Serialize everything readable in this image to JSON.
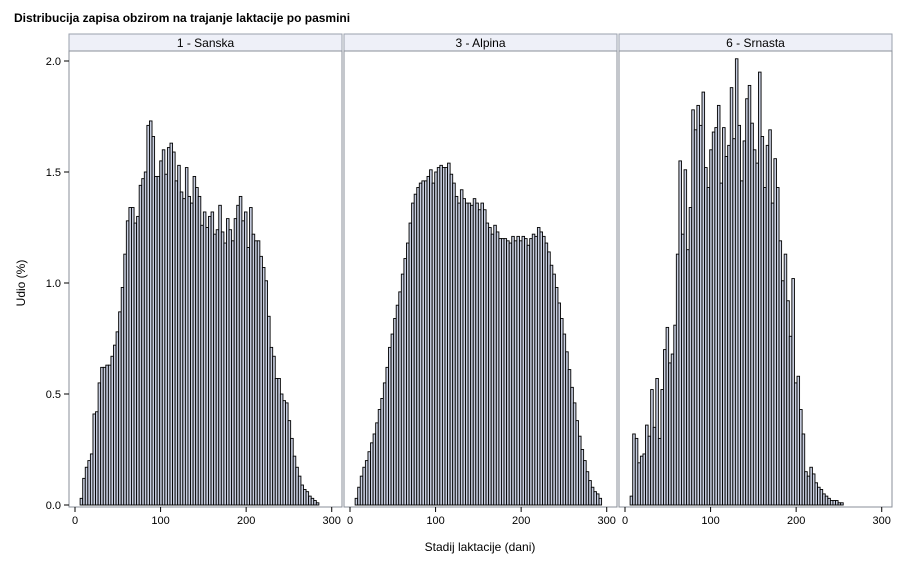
{
  "chart_data": {
    "type": "bar",
    "title": "Distribucija zapisa obzirom na trajanje laktacije po pasmini",
    "xlabel": "Stadij laktacije (dani)",
    "ylabel": "Udio (%)",
    "xlim": [
      0,
      305
    ],
    "ylim": [
      0,
      2.0
    ],
    "xticks": [
      0,
      100,
      200,
      300
    ],
    "yticks": [
      "0.0",
      "0.5",
      "1.0",
      "1.5",
      "2.0"
    ],
    "bin_width": 3,
    "bar_color": "#c9cfe1",
    "bar_edge_color": "#000000",
    "panel_header_color": "#eef0f8",
    "panels": [
      {
        "name": "1 - Sanska",
        "start": 6,
        "values": [
          0.03,
          0.12,
          0.17,
          0.2,
          0.23,
          0.41,
          0.42,
          0.55,
          0.62,
          0.62,
          0.63,
          0.63,
          0.67,
          0.72,
          0.78,
          0.87,
          0.98,
          1.13,
          1.28,
          1.34,
          1.34,
          1.27,
          1.3,
          1.44,
          1.47,
          1.5,
          1.71,
          1.73,
          1.66,
          1.48,
          1.48,
          1.55,
          1.6,
          1.49,
          1.61,
          1.63,
          1.59,
          1.46,
          1.53,
          1.41,
          1.38,
          1.52,
          1.39,
          1.36,
          1.48,
          1.43,
          1.39,
          1.26,
          1.32,
          1.25,
          1.3,
          1.32,
          1.22,
          1.24,
          1.35,
          1.23,
          1.18,
          1.29,
          1.24,
          1.19,
          1.29,
          1.35,
          1.39,
          1.28,
          1.32,
          1.16,
          1.34,
          1.22,
          1.19,
          1.19,
          1.12,
          1.07,
          1.01,
          0.85,
          0.71,
          0.67,
          0.57,
          0.57,
          0.5,
          0.47,
          0.46,
          0.38,
          0.3,
          0.22,
          0.17,
          0.13,
          0.09,
          0.07,
          0.06,
          0.04,
          0.03,
          0.02,
          0.01
        ]
      },
      {
        "name": "3 - Alpina",
        "start": 6,
        "values": [
          0.03,
          0.08,
          0.13,
          0.17,
          0.2,
          0.24,
          0.28,
          0.32,
          0.37,
          0.43,
          0.48,
          0.55,
          0.62,
          0.71,
          0.77,
          0.84,
          0.9,
          0.96,
          1.04,
          1.11,
          1.18,
          1.27,
          1.36,
          1.4,
          1.43,
          1.45,
          1.46,
          1.46,
          1.48,
          1.51,
          1.45,
          1.5,
          1.52,
          1.53,
          1.52,
          1.52,
          1.54,
          1.49,
          1.45,
          1.39,
          1.36,
          1.42,
          1.38,
          1.36,
          1.36,
          1.35,
          1.38,
          1.36,
          1.33,
          1.36,
          1.33,
          1.27,
          1.25,
          1.22,
          1.26,
          1.23,
          1.2,
          1.2,
          1.2,
          1.19,
          1.18,
          1.21,
          1.19,
          1.21,
          1.19,
          1.21,
          1.2,
          1.17,
          1.2,
          1.22,
          1.21,
          1.25,
          1.23,
          1.21,
          1.18,
          1.14,
          1.08,
          1.04,
          0.98,
          0.91,
          0.84,
          0.77,
          0.69,
          0.61,
          0.53,
          0.46,
          0.38,
          0.31,
          0.25,
          0.2,
          0.15,
          0.11,
          0.08,
          0.06,
          0.05,
          0.03
        ]
      },
      {
        "name": "6 - Srnasta",
        "start": 6,
        "values": [
          0.04,
          0.32,
          0.3,
          0.19,
          0.22,
          0.23,
          0.36,
          0.31,
          0.52,
          0.35,
          0.57,
          0.3,
          0.52,
          0.7,
          0.8,
          0.64,
          0.68,
          0.81,
          1.13,
          1.55,
          1.22,
          1.51,
          1.15,
          1.34,
          1.78,
          1.69,
          1.8,
          1.71,
          1.86,
          1.52,
          1.43,
          1.6,
          1.68,
          1.7,
          1.8,
          1.45,
          1.7,
          1.57,
          1.62,
          1.88,
          1.65,
          2.01,
          1.71,
          1.46,
          1.64,
          1.83,
          1.89,
          1.72,
          1.6,
          1.54,
          1.95,
          1.66,
          1.43,
          1.62,
          1.69,
          1.36,
          1.56,
          1.43,
          1.19,
          1.01,
          1.13,
          0.92,
          0.76,
          1.02,
          0.55,
          0.58,
          0.43,
          0.32,
          0.15,
          0.13,
          0.17,
          0.14,
          0.1,
          0.08,
          0.07,
          0.05,
          0.04,
          0.03,
          0.02,
          0.02,
          0.02,
          0.01,
          0.01
        ]
      }
    ]
  }
}
